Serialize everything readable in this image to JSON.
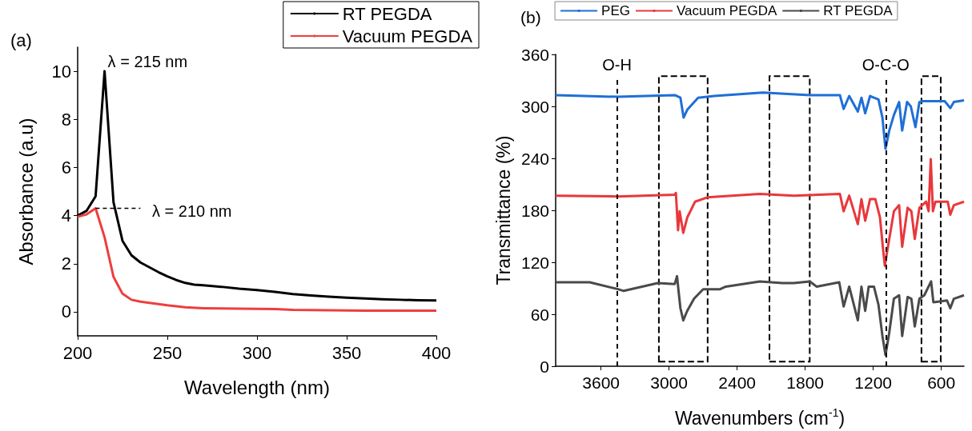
{
  "chart_data": [
    {
      "type": "line",
      "title": "(a)",
      "xlabel": "Wavelength (nm)",
      "ylabel": "Absorbance (a.u)",
      "xlim": [
        200,
        400
      ],
      "xticks": [
        200,
        250,
        300,
        350,
        400
      ],
      "ylim": [
        -1,
        11
      ],
      "yticks": [
        0,
        2,
        4,
        6,
        8,
        10
      ],
      "legend": "top right",
      "marker": "none",
      "line_style": "solid",
      "annotations": [
        {
          "text": "λ = 215 nm",
          "x": 215,
          "y": 10
        },
        "λ = 210 nm"
      ],
      "series": [
        {
          "name": "RT PEGDA",
          "color": "#000000",
          "x": [
            200,
            205,
            210,
            215,
            220,
            225,
            230,
            235,
            240,
            245,
            250,
            255,
            260,
            265,
            270,
            280,
            290,
            300,
            310,
            320,
            330,
            340,
            350,
            360,
            370,
            380,
            390,
            400
          ],
          "values": [
            4.0,
            4.2,
            4.8,
            10.0,
            4.55,
            2.95,
            2.35,
            2.05,
            1.85,
            1.65,
            1.47,
            1.32,
            1.2,
            1.13,
            1.1,
            1.04,
            0.96,
            0.9,
            0.83,
            0.74,
            0.68,
            0.63,
            0.59,
            0.55,
            0.52,
            0.5,
            0.48,
            0.47
          ]
        },
        {
          "name": "Vacuum PEGDA",
          "color": "#ee3e3e",
          "x": [
            200,
            205,
            210,
            215,
            220,
            225,
            230,
            235,
            240,
            250,
            260,
            270,
            280,
            300,
            310,
            320,
            340,
            360,
            380,
            400
          ],
          "values": [
            3.95,
            4.05,
            4.3,
            3.1,
            1.45,
            0.75,
            0.5,
            0.42,
            0.37,
            0.27,
            0.19,
            0.15,
            0.14,
            0.12,
            0.11,
            0.08,
            0.06,
            0.05,
            0.05,
            0.05
          ]
        },
        {
          "color": "#000000",
          "line_style": "dashed",
          "x": [
            210,
            235
          ],
          "values": [
            4.3,
            4.3
          ]
        }
      ]
    },
    {
      "type": "line",
      "title": "(b)",
      "xlabel": "Wavenumbers (cm$^{-1}$)",
      "ylabel": "Transmittance (%)",
      "xlim": [
        4000,
        400
      ],
      "xticks": [
        3600,
        3000,
        2400,
        1800,
        1200,
        600
      ],
      "ylim": [
        0,
        360
      ],
      "yticks": [
        0,
        60,
        120,
        180,
        240,
        300,
        360
      ],
      "legend": "top",
      "marker": "none",
      "line_style": "solid",
      "ref_lines": [
        {
          "axis": "x",
          "value": 3460,
          "label": "O-H",
          "line_style": "dashed"
        },
        {
          "axis": "x",
          "value": 1090,
          "label": "O-C-O",
          "line_style": "dashed"
        }
      ],
      "bands": [
        {
          "axis": "x",
          "from": 3090,
          "to": 2660,
          "color": "#000000"
        },
        {
          "axis": "x",
          "from": 2115,
          "to": 1760,
          "color": "#000000"
        },
        {
          "axis": "x",
          "from": 775,
          "to": 605,
          "color": "#000000"
        }
      ],
      "series": [
        {
          "name": "PEG",
          "color": "#1f6fd6",
          "x": [
            4000,
            3450,
            2950,
            2900,
            2872,
            2840,
            2744,
            2600,
            2173,
            1760,
            1494,
            1461,
            1412,
            1336,
            1304,
            1271,
            1228,
            1194,
            1154,
            1119,
            1092,
            1059,
            1018,
            972,
            945,
            902,
            869,
            828,
            793,
            760,
            570,
            521,
            489,
            400
          ],
          "values": [
            313,
            311,
            313,
            310,
            287,
            296,
            310,
            312,
            316,
            313,
            313,
            297,
            312,
            294,
            310,
            292,
            312,
            310,
            308,
            287,
            251,
            272,
            290,
            305,
            272,
            305,
            300,
            276,
            305,
            306,
            306,
            298,
            305,
            307
          ]
        },
        {
          "name": "Vacuum PEGDA",
          "color": "#e8383c",
          "x": [
            4000,
            3450,
            2950,
            2940,
            2921,
            2907,
            2875,
            2839,
            2771,
            2663,
            2200,
            1900,
            1494,
            1461,
            1412,
            1336,
            1304,
            1271,
            1228,
            1182,
            1141,
            1114,
            1098,
            1073,
            1018,
            972,
            945,
            897,
            864,
            834,
            793,
            734,
            712,
            693,
            674,
            652,
            543,
            521,
            489,
            400
          ],
          "values": [
            197,
            196,
            198,
            200,
            157,
            179,
            154,
            172,
            190,
            195,
            199,
            197,
            199,
            179,
            197,
            164,
            193,
            168,
            193,
            193,
            172,
            136,
            116,
            136,
            179,
            186,
            138,
            183,
            179,
            147,
            183,
            190,
            179,
            239,
            179,
            190,
            190,
            175,
            186,
            190
          ]
        },
        {
          "name": "RT PEGDA",
          "color": "#4a4a4a",
          "x": [
            4000,
            3700,
            3450,
            3400,
            3100,
            2950,
            2930,
            2915,
            2900,
            2875,
            2840,
            2780,
            2700,
            2550,
            2500,
            2200,
            2000,
            1900,
            1760,
            1700,
            1500,
            1461,
            1412,
            1336,
            1304,
            1271,
            1240,
            1194,
            1154,
            1119,
            1092,
            1060,
            1018,
            972,
            945,
            897,
            864,
            834,
            793,
            750,
            690,
            670,
            600,
            550,
            521,
            489,
            400
          ],
          "values": [
            97,
            97,
            89,
            87,
            96,
            95,
            104,
            85,
            67,
            53,
            64,
            78,
            89,
            89,
            92,
            98,
            96,
            96,
            98,
            92,
            97,
            69,
            92,
            53,
            92,
            64,
            92,
            92,
            71,
            35,
            13,
            38,
            78,
            82,
            35,
            80,
            78,
            46,
            78,
            82,
            98,
            74,
            75,
            76,
            67,
            78,
            82
          ]
        }
      ]
    }
  ]
}
